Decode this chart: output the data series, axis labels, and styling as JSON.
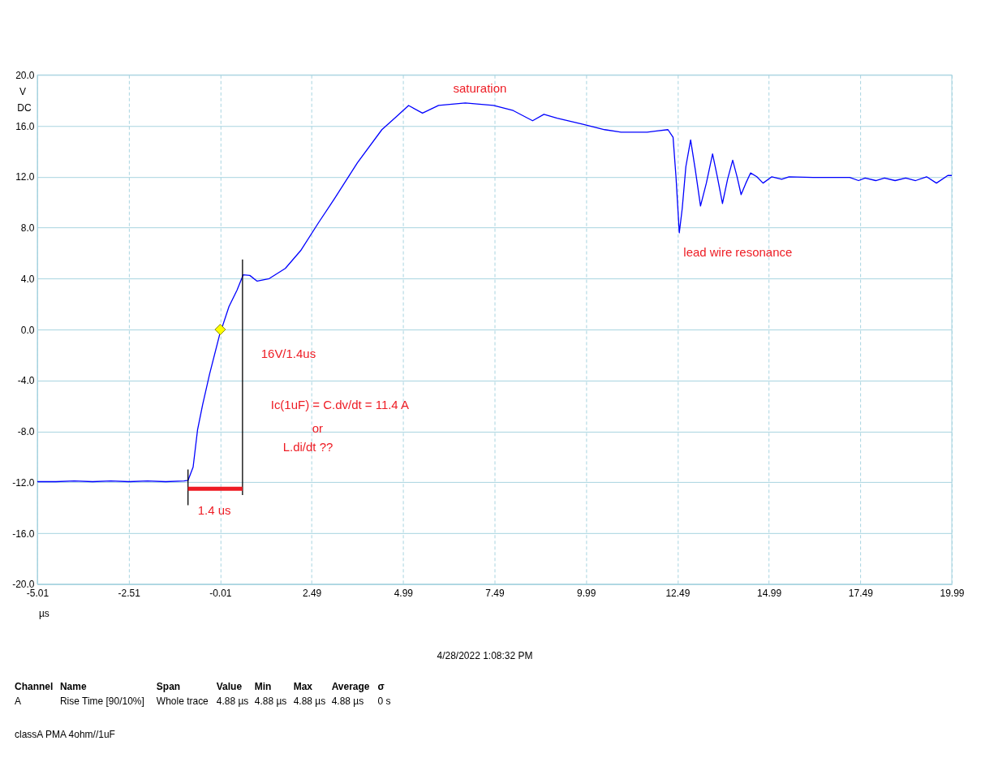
{
  "chart_data": {
    "type": "line",
    "xlabel": "µs",
    "ylabel": "V DC",
    "xlim": [
      -5.01,
      19.99
    ],
    "xticks": [
      {
        "value": -5.01,
        "label": "-5.01"
      },
      {
        "value": -2.51,
        "label": "-2.51"
      },
      {
        "value": -0.01,
        "label": "-0.01"
      },
      {
        "value": 2.49,
        "label": "2.49"
      },
      {
        "value": 4.99,
        "label": "4.99"
      },
      {
        "value": 7.49,
        "label": "7.49"
      },
      {
        "value": 9.99,
        "label": "9.99"
      },
      {
        "value": 12.49,
        "label": "12.49"
      },
      {
        "value": 14.99,
        "label": "14.99"
      },
      {
        "value": 17.49,
        "label": "17.49"
      },
      {
        "value": 19.99,
        "label": "19.99"
      }
    ],
    "ylim": [
      -20,
      20
    ],
    "yticks": [
      {
        "value": -20,
        "label": "-20.0"
      },
      {
        "value": -16,
        "label": "-16.0"
      },
      {
        "value": -12,
        "label": "-12.0"
      },
      {
        "value": -8,
        "label": "-8.0"
      },
      {
        "value": -4,
        "label": "-4.0"
      },
      {
        "value": 0,
        "label": "0.0"
      },
      {
        "value": 4,
        "label": "4.0"
      },
      {
        "value": 8,
        "label": "8.0"
      },
      {
        "value": 12,
        "label": "12.0"
      },
      {
        "value": 16,
        "label": "16.0"
      },
      {
        "value": 20,
        "label": "20.0"
      }
    ],
    "grid": true,
    "line_style": "solid",
    "marker": "none",
    "series": [
      {
        "color": "#0000ff",
        "x": [
          -5.01,
          -4.5,
          -4.0,
          -3.5,
          -3.0,
          -2.5,
          -2.0,
          -1.5,
          -1.0,
          -0.89,
          -0.75,
          -0.63,
          -0.49,
          -0.3,
          -0.03,
          0.23,
          0.45,
          0.62,
          0.8,
          1.0,
          1.33,
          1.77,
          2.19,
          2.68,
          3.12,
          3.74,
          4.41,
          4.8,
          5.14,
          5.52,
          5.96,
          6.69,
          7.46,
          8.0,
          8.53,
          8.84,
          9.2,
          9.93,
          10.5,
          10.95,
          11.66,
          11.92,
          12.23,
          12.37,
          12.45,
          12.54,
          12.62,
          12.72,
          12.85,
          12.98,
          13.12,
          13.28,
          13.45,
          13.58,
          13.72,
          13.86,
          14.0,
          14.12,
          14.23,
          14.36,
          14.49,
          14.66,
          14.83,
          15.07,
          15.34,
          15.54,
          16.2,
          16.8,
          17.2,
          17.44,
          17.62,
          17.91,
          18.15,
          18.44,
          18.73,
          19.0,
          19.3,
          19.57,
          19.88,
          19.99
        ],
        "values": [
          -11.95,
          -11.95,
          -11.9,
          -11.95,
          -11.9,
          -11.95,
          -11.9,
          -11.95,
          -11.9,
          -11.85,
          -10.8,
          -7.9,
          -5.9,
          -3.5,
          -0.45,
          1.8,
          3.1,
          4.3,
          4.25,
          3.8,
          4.0,
          4.8,
          6.2,
          8.4,
          10.3,
          13.1,
          15.7,
          16.7,
          17.6,
          17.0,
          17.6,
          17.8,
          17.6,
          17.2,
          16.4,
          16.9,
          16.6,
          16.1,
          15.7,
          15.5,
          15.5,
          15.6,
          15.7,
          15.1,
          12.0,
          7.6,
          9.5,
          12.8,
          14.9,
          12.5,
          9.7,
          11.5,
          13.8,
          12.0,
          9.9,
          11.8,
          13.3,
          12.0,
          10.6,
          11.5,
          12.3,
          12.0,
          11.5,
          12.0,
          11.8,
          12.0,
          11.95,
          11.95,
          11.95,
          11.7,
          11.9,
          11.7,
          11.9,
          11.7,
          11.9,
          11.7,
          12.0,
          11.5,
          12.1,
          12.1
        ]
      },
      {
        "type": "line",
        "color": "#000000",
        "x": [
          -0.89,
          -0.89
        ],
        "values": [
          -11.0,
          -13.8
        ]
      },
      {
        "type": "line",
        "color": "#000000",
        "x": [
          0.6,
          0.6
        ],
        "values": [
          5.5,
          -13.0
        ]
      },
      {
        "type": "line",
        "color": "#ee1c24",
        "x": [
          -0.89,
          0.6
        ],
        "values": [
          -12.5,
          -12.5
        ]
      },
      {
        "type": "scatter",
        "marker": "diamond",
        "color": "#ffff00",
        "x": [
          -0.01
        ],
        "values": [
          0.0
        ]
      }
    ],
    "annotations": [
      "saturation",
      "lead wire resonance",
      "16V/1.4us",
      "Ic(1uF) = C.dv/dt = 11.4 A",
      "or",
      "L.di/dt ??",
      "1.4 us",
      "4/28/2022 1:08:32 PM",
      "Channel",
      "Name",
      "Span",
      "Value",
      "Min",
      "Max",
      "Average",
      "σ",
      "A",
      "Rise Time  [90/10%]",
      "Whole trace",
      "4.88 µs",
      "4.88 µs",
      "4.88 µs",
      "4.88 µs",
      "0 s",
      "classA PMA 4ohm//1uF"
    ]
  }
}
